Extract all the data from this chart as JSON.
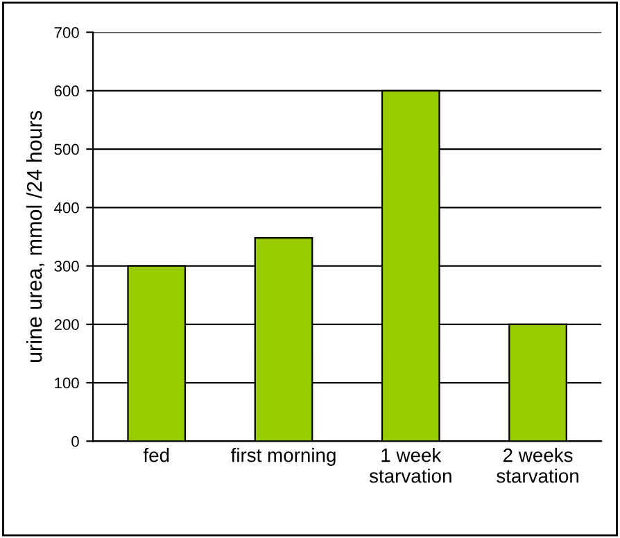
{
  "chart_data": {
    "type": "bar",
    "categories": [
      "fed",
      "first morning",
      "1 week\nstarvation",
      "2 weeks\nstarvation"
    ],
    "values": [
      300,
      348,
      600,
      200
    ],
    "color": "#99cc00",
    "ylabel": "urine urea, mmol /24 hours",
    "ylim": [
      0,
      700
    ],
    "yticks": [
      0,
      100,
      200,
      300,
      400,
      500,
      600,
      700
    ],
    "grid": "y"
  }
}
